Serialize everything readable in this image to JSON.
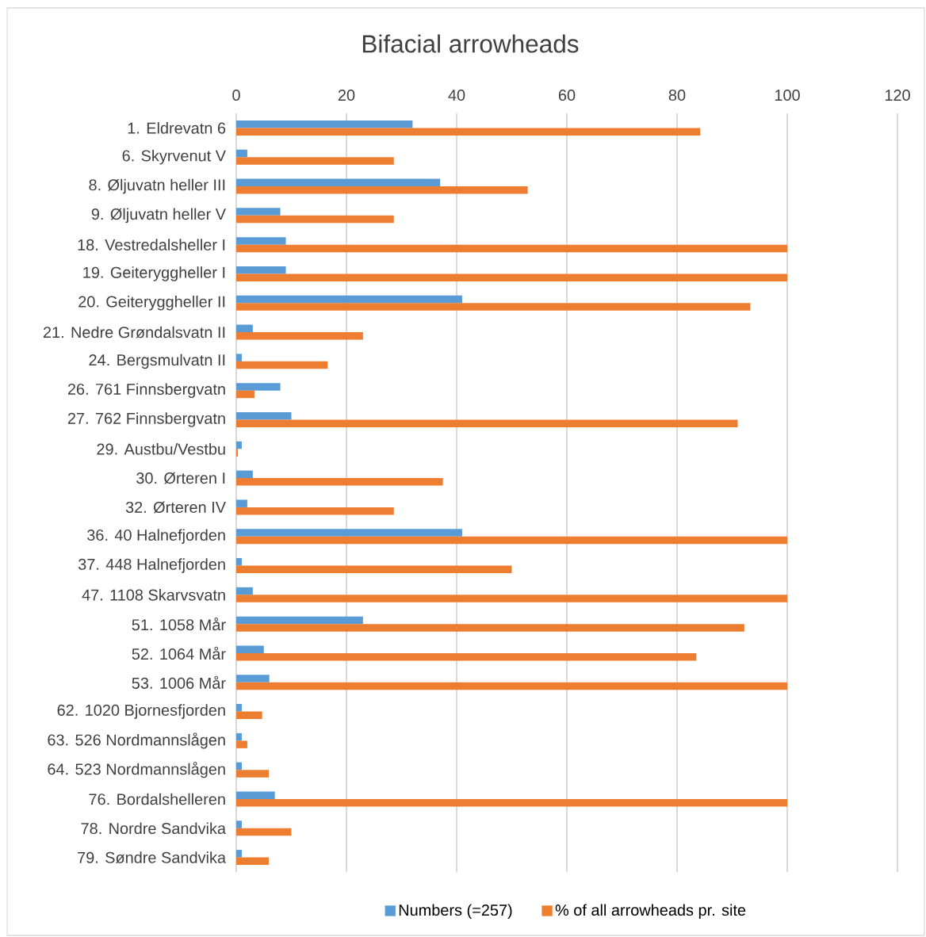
{
  "chart_data": {
    "type": "bar",
    "orientation": "horizontal",
    "title": "Bifacial arrowheads",
    "categories": [
      "1. Eldrevatn 6",
      "6. Skyrvenut V",
      "8. Øljuvatn heller III",
      "9. Øljuvatn heller V",
      "18. Vestredalsheller I",
      "19. Geiteryggheller I",
      "20. Geiteryggheller II",
      "21. Nedre Grøndalsvatn II",
      "24. Bergsmulvatn II",
      "26. 761 Finnsbergvatn",
      "27. 762 Finnsbergvatn",
      "29. Austbu/Vestbu",
      "30. Ørteren I",
      "32. Ørteren IV",
      "36. 40 Halnefjorden",
      "37. 448 Halnefjorden",
      "47. 1108 Skarvsvatn",
      "51. 1058 Mår",
      "52. 1064 Mår",
      "53. 1006 Mår",
      "62. 1020 Bjornesfjorden",
      "63. 526 Nordmannslågen",
      "64. 523 Nordmannslågen",
      "76. Bordalshelleren",
      "78. Nordre Sandvika",
      "79. Søndre Sandvika"
    ],
    "series": [
      {
        "name": "Numbers (=257)",
        "color": "#5b9bd5",
        "values": [
          32,
          2,
          37,
          8,
          9,
          9,
          41,
          3,
          1,
          8,
          10,
          1,
          3,
          2,
          41,
          1,
          3,
          23,
          5,
          6,
          1,
          1,
          1,
          7,
          1,
          1
        ]
      },
      {
        "name": "% of all arrowheads pr. site",
        "color": "#ed7d31",
        "values": [
          84.2,
          28.6,
          52.9,
          28.6,
          100,
          100,
          93.3,
          23.0,
          16.6,
          3.3,
          91.0,
          0.3,
          37.5,
          28.6,
          100,
          50.0,
          100,
          92.2,
          83.5,
          100,
          4.7,
          2.0,
          5.9,
          100,
          10.0,
          5.9
        ]
      }
    ],
    "xlim": [
      0,
      120
    ],
    "xticks": [
      0,
      20,
      40,
      60,
      80,
      100,
      120
    ],
    "grid": "x",
    "legend": "bottom"
  }
}
